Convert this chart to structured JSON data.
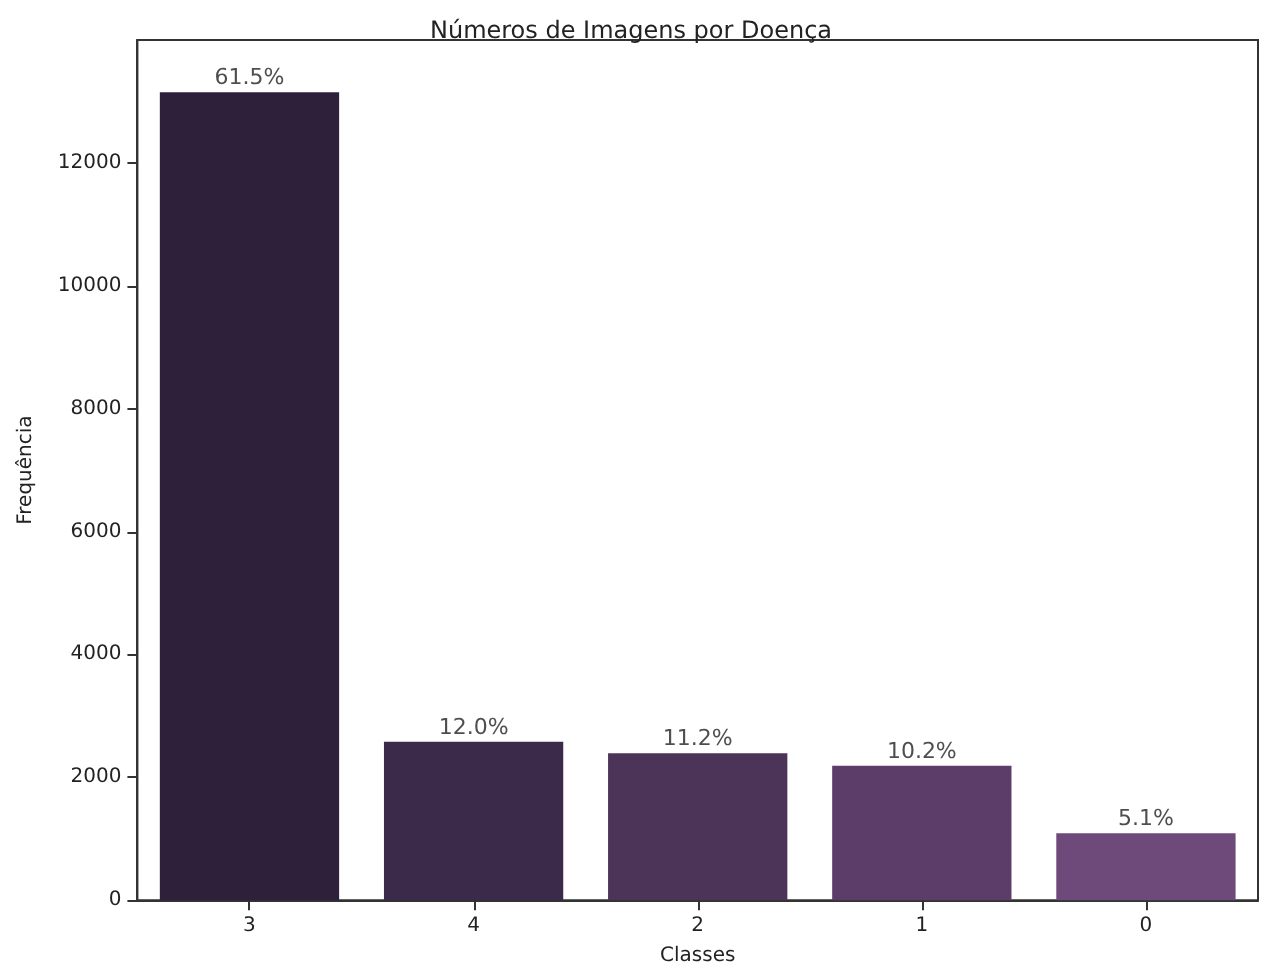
{
  "chart_data": {
    "type": "bar",
    "title": "Números de Imagens por Doença",
    "xlabel": "Classes",
    "ylabel": "Frequência",
    "categories": [
      "3",
      "4",
      "2",
      "1",
      "0"
    ],
    "values": [
      13150,
      2580,
      2390,
      2190,
      1090
    ],
    "colors": [
      "#2e1f3a",
      "#3c2a4a",
      "#4c3358",
      "#5c3c68",
      "#6e4a7a"
    ],
    "annotations": [
      {
        "text": "61.5%",
        "x": "3",
        "y": 13150
      },
      {
        "text": "12.0%",
        "x": "4",
        "y": 2580
      },
      {
        "text": "11.2%",
        "x": "2",
        "y": 2390
      },
      {
        "text": "10.2%",
        "x": "1",
        "y": 2190
      },
      {
        "text": "5.1%",
        "x": "0",
        "y": 1090
      }
    ],
    "ylim": [
      0,
      14000
    ],
    "yticks": [
      0,
      2000,
      4000,
      6000,
      8000,
      10000,
      12000
    ],
    "grid": false
  }
}
